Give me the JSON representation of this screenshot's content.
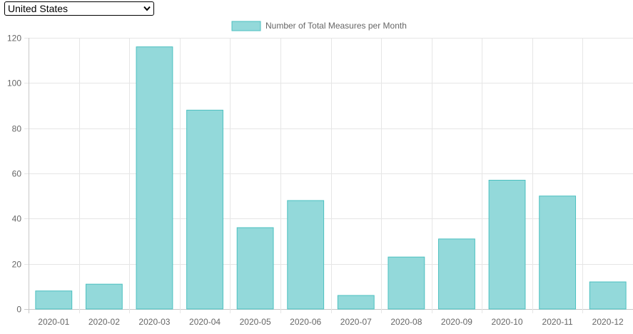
{
  "country_select": {
    "selected": "United States"
  },
  "colors": {
    "bar_fill": "#93d9da",
    "bar_stroke": "#4bc0c0",
    "grid": "#e6e6e6",
    "axis": "#c8c8c8",
    "label": "#666666"
  },
  "chart_data": {
    "type": "bar",
    "title": "",
    "xlabel": "",
    "ylabel": "",
    "legend": "top-center",
    "grid": true,
    "categories": [
      "2020-01",
      "2020-02",
      "2020-03",
      "2020-04",
      "2020-05",
      "2020-06",
      "2020-07",
      "2020-08",
      "2020-09",
      "2020-10",
      "2020-11",
      "2020-12"
    ],
    "series": [
      {
        "name": "Number of Total Measures per Month",
        "values": [
          8,
          11,
          116,
          88,
          36,
          48,
          6,
          23,
          31,
          57,
          50,
          12
        ]
      }
    ],
    "ylim": [
      0,
      120
    ],
    "yticks": [
      0,
      20,
      40,
      60,
      80,
      100,
      120
    ]
  }
}
